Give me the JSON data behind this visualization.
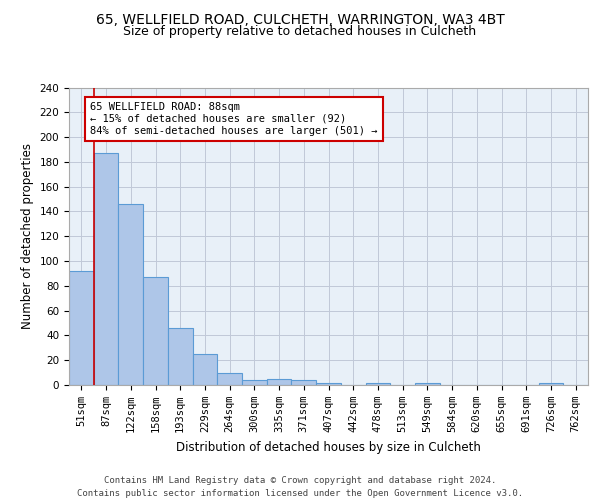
{
  "title1": "65, WELLFIELD ROAD, CULCHETH, WARRINGTON, WA3 4BT",
  "title2": "Size of property relative to detached houses in Culcheth",
  "xlabel": "Distribution of detached houses by size in Culcheth",
  "ylabel": "Number of detached properties",
  "bin_labels": [
    "51sqm",
    "87sqm",
    "122sqm",
    "158sqm",
    "193sqm",
    "229sqm",
    "264sqm",
    "300sqm",
    "335sqm",
    "371sqm",
    "407sqm",
    "442sqm",
    "478sqm",
    "513sqm",
    "549sqm",
    "584sqm",
    "620sqm",
    "655sqm",
    "691sqm",
    "726sqm",
    "762sqm"
  ],
  "bar_heights": [
    92,
    187,
    146,
    87,
    46,
    25,
    10,
    4,
    5,
    4,
    2,
    0,
    2,
    0,
    2,
    0,
    0,
    0,
    0,
    2,
    0
  ],
  "bar_color": "#aec6e8",
  "bar_edge_color": "#5b9bd5",
  "vline_x_idx": 1,
  "vline_color": "#cc0000",
  "annotation_text": "65 WELLFIELD ROAD: 88sqm\n← 15% of detached houses are smaller (92)\n84% of semi-detached houses are larger (501) →",
  "annotation_box_color": "#ffffff",
  "annotation_box_edge": "#cc0000",
  "ylim": [
    0,
    240
  ],
  "yticks": [
    0,
    20,
    40,
    60,
    80,
    100,
    120,
    140,
    160,
    180,
    200,
    220,
    240
  ],
  "background_color": "#e8f0f8",
  "footer": "Contains HM Land Registry data © Crown copyright and database right 2024.\nContains public sector information licensed under the Open Government Licence v3.0.",
  "title1_fontsize": 10,
  "title2_fontsize": 9,
  "xlabel_fontsize": 8.5,
  "ylabel_fontsize": 8.5,
  "tick_fontsize": 7.5,
  "annotation_fontsize": 7.5,
  "footer_fontsize": 6.5
}
